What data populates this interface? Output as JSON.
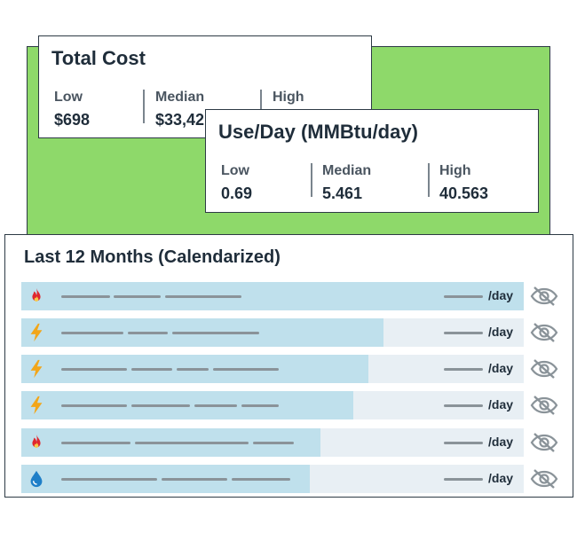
{
  "total_cost": {
    "title": "Total Cost",
    "low_label": "Low",
    "low_value": "$698",
    "median_label": "Median",
    "median_value": "$33,42",
    "high_label": "High"
  },
  "use_per_day": {
    "title": "Use/Day (MMBtu/day)",
    "low_label": "Low",
    "low_value": "0.69",
    "median_label": "Median",
    "median_value": "5.461",
    "high_label": "High",
    "high_value": "40.563"
  },
  "last_months": {
    "title": "Last 12 Months (Calendarized)",
    "rows": [
      {
        "icon": "flame-icon",
        "fill": 1.0,
        "unit": "/day"
      },
      {
        "icon": "lightning-icon",
        "fill": 0.72,
        "unit": "/day"
      },
      {
        "icon": "lightning-icon",
        "fill": 0.69,
        "unit": "/day"
      },
      {
        "icon": "lightning-icon",
        "fill": 0.66,
        "unit": "/day"
      },
      {
        "icon": "flame-icon",
        "fill": 0.595,
        "unit": "/day"
      },
      {
        "icon": "water-drop-icon",
        "fill": 0.575,
        "unit": "/day"
      }
    ]
  },
  "colors": {
    "background_panel": "#8ed96a",
    "bar_fill": "#bfe0ec",
    "bar_track": "#e8eff4",
    "flame": "#e0262e",
    "lightning": "#f2a619",
    "water": "#1f7fc8"
  }
}
